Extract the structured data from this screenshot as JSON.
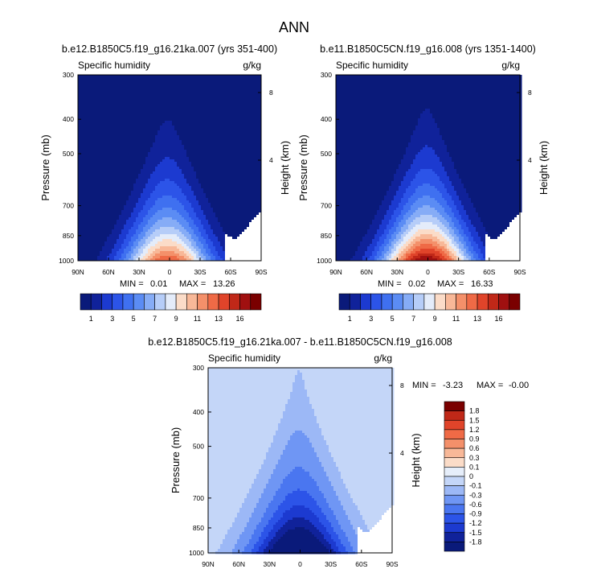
{
  "page_title": "ANN",
  "palette": {
    "abs": [
      "#0a1a7a",
      "#10229a",
      "#1c3ad0",
      "#2c54e8",
      "#3f70f0",
      "#5b8cf4",
      "#86acf6",
      "#b6cdf8",
      "#e4ecfa",
      "#fbdcc8",
      "#f8b898",
      "#f4906a",
      "#ef6a46",
      "#e0442a",
      "#c02818",
      "#a01010",
      "#7a0000"
    ],
    "diff": [
      "#0a1a7a",
      "#10229a",
      "#1c3ad0",
      "#2c54e8",
      "#4a76f0",
      "#6f96f4",
      "#9cb8f6",
      "#c4d6f8",
      "#e6eefa",
      "#fbdcc8",
      "#f8b898",
      "#f4906a",
      "#ef6a46",
      "#e0442a",
      "#c02818",
      "#7a0000"
    ],
    "frame": "#000000"
  },
  "chart_data": [
    {
      "type": "contour",
      "title": "b.e12.B1850C5.f19_g16.21ka.007 (yrs 351-400)",
      "subtitle_left": "Specific humidity",
      "units": "g/kg",
      "xlabel": "",
      "ylabel": "Pressure (mb)",
      "ylabel_right": "Height (km)",
      "x_ticks": [
        "90N",
        "60N",
        "30N",
        "0",
        "30S",
        "60S",
        "90S"
      ],
      "y_ticks": [
        "300",
        "400",
        "500",
        "700",
        "850",
        "1000"
      ],
      "right_ticks": [
        "8",
        "4"
      ],
      "min_label": "MIN =",
      "min_value": "0.01",
      "max_label": "MAX =",
      "max_value": "13.26",
      "levels": [
        1,
        2,
        3,
        4,
        5,
        6,
        7,
        8,
        9,
        10,
        11,
        12,
        13,
        14,
        15,
        16
      ],
      "level_labels": [
        "1",
        "3",
        "5",
        "7",
        "9",
        "11",
        "13",
        "16"
      ],
      "peak": 13.26,
      "ylim": [
        1000,
        300
      ],
      "xlim": [
        90,
        -90
      ]
    },
    {
      "type": "contour",
      "title": "b.e11.B1850C5CN.f19_g16.008 (yrs 1351-1400)",
      "subtitle_left": "Specific humidity",
      "units": "g/kg",
      "xlabel": "",
      "ylabel": "Pressure (mb)",
      "ylabel_right": "Height (km)",
      "x_ticks": [
        "90N",
        "60N",
        "30N",
        "0",
        "30S",
        "60S",
        "90S"
      ],
      "y_ticks": [
        "300",
        "400",
        "500",
        "700",
        "850",
        "1000"
      ],
      "right_ticks": [
        "8",
        "4"
      ],
      "min_label": "MIN =",
      "min_value": "0.02",
      "max_label": "MAX =",
      "max_value": "16.33",
      "levels": [
        1,
        2,
        3,
        4,
        5,
        6,
        7,
        8,
        9,
        10,
        11,
        12,
        13,
        14,
        15,
        16
      ],
      "level_labels": [
        "1",
        "3",
        "5",
        "7",
        "9",
        "11",
        "13",
        "16"
      ],
      "peak": 16.33,
      "ylim": [
        1000,
        300
      ],
      "xlim": [
        90,
        -90
      ]
    },
    {
      "type": "contour",
      "title": "b.e12.B1850C5.f19_g16.21ka.007 - b.e11.B1850C5CN.f19_g16.008",
      "subtitle_left": "Specific humidity",
      "units": "g/kg",
      "xlabel": "",
      "ylabel": "Pressure (mb)",
      "ylabel_right": "Height (km)",
      "x_ticks": [
        "90N",
        "60N",
        "30N",
        "0",
        "30S",
        "60S",
        "90S"
      ],
      "y_ticks": [
        "300",
        "400",
        "500",
        "700",
        "850",
        "1000"
      ],
      "right_ticks": [
        "8",
        "4"
      ],
      "min_label": "MIN =",
      "min_value": "-3.23",
      "max_label": "MAX =",
      "max_value": "-0.00",
      "levels": [
        -1.8,
        -1.5,
        -1.2,
        -0.9,
        -0.6,
        -0.3,
        -0.1,
        0,
        0.1,
        0.3,
        0.6,
        0.9,
        1.2,
        1.5,
        1.8
      ],
      "level_labels": [
        "1.8",
        "1.5",
        "1.2",
        "0.9",
        "0.6",
        "0.3",
        "0.1",
        "0",
        "-0.1",
        "-0.3",
        "-0.6",
        "-0.9",
        "-1.2",
        "-1.5",
        "-1.8"
      ],
      "min": -3.23,
      "ylim": [
        1000,
        300
      ],
      "xlim": [
        90,
        -90
      ]
    }
  ]
}
